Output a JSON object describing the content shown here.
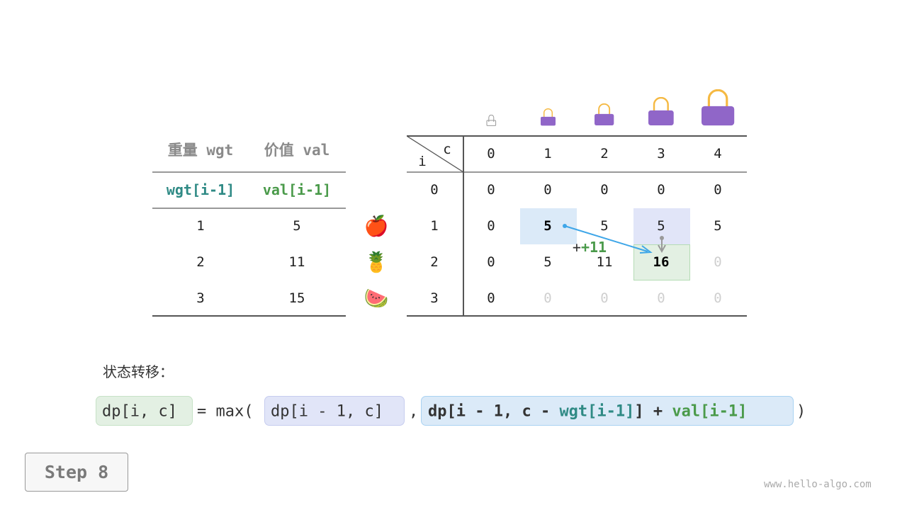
{
  "item_table": {
    "headers": [
      "重量 wgt",
      "价值 val"
    ],
    "subheaders": [
      "wgt[i-1]",
      "val[i-1]"
    ],
    "rows": [
      [
        "1",
        "5"
      ],
      [
        "2",
        "11"
      ],
      [
        "3",
        "15"
      ]
    ],
    "items": [
      "apple-icon",
      "pineapple-icon",
      "watermelon-icon"
    ],
    "item_glyphs": [
      "🍎",
      "🍍",
      "🍉"
    ]
  },
  "dp_table": {
    "corner_row_label": "i",
    "corner_col_label": "c",
    "col_headers": [
      "0",
      "1",
      "2",
      "3",
      "4"
    ],
    "row_headers": [
      "0",
      "1",
      "2",
      "3"
    ],
    "cells": [
      [
        "0",
        "0",
        "0",
        "0",
        "0"
      ],
      [
        "0",
        "5",
        "5",
        "5",
        "5"
      ],
      [
        "0",
        "5",
        "11",
        "16",
        "0"
      ],
      [
        "0",
        "0",
        "0",
        "0",
        "0"
      ]
    ],
    "pending": [
      [
        2,
        4
      ],
      [
        3,
        1
      ],
      [
        3,
        2
      ],
      [
        3,
        3
      ],
      [
        3,
        4
      ]
    ],
    "bold": [
      [
        1,
        1
      ],
      [
        2,
        3
      ]
    ],
    "highlight": {
      "source_value": [
        1,
        1
      ],
      "source_skip": [
        1,
        3
      ],
      "target": [
        2,
        3
      ]
    },
    "add_label": "+11"
  },
  "formula": {
    "label": "状态转移：",
    "lhs": "dp[i, c]",
    "eq": "= max(",
    "arg1": "dp[i - 1, c]",
    "comma": ",",
    "arg2_a": "dp[i - 1, c - ",
    "arg2_wgt": "wgt[i-1]",
    "arg2_b": "] + ",
    "arg2_val": "val[i-1]",
    "close": ")"
  },
  "step_button": "Step 8",
  "watermark": "www.hello-algo.com",
  "colors": {
    "teal": "#2f8a85",
    "green": "#4a9a4a",
    "bag": "#9066c8",
    "handle": "#f5b942",
    "blue_bg": "#dbeaf8",
    "purple_bg": "#e1e5f8",
    "green_bg": "#e3f0e3",
    "arrow": "#3ea6e8"
  }
}
